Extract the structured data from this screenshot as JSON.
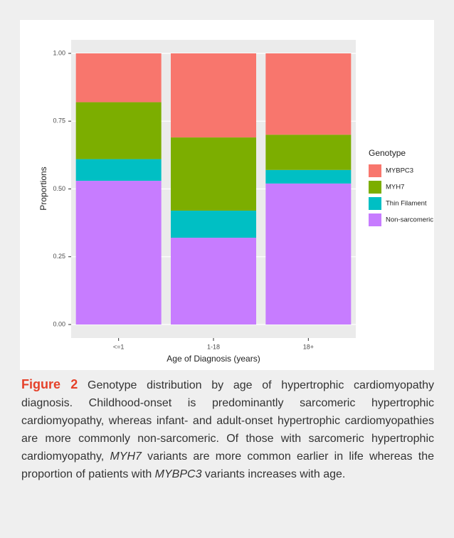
{
  "chart_data": {
    "type": "bar",
    "stacked": true,
    "categories": [
      "<=1",
      "1-18",
      "18+"
    ],
    "series": [
      {
        "name": "MYBPC3",
        "color": "#f8766d",
        "values": [
          0.18,
          0.31,
          0.3
        ]
      },
      {
        "name": "MYH7",
        "color": "#7cae00",
        "values": [
          0.21,
          0.27,
          0.13
        ]
      },
      {
        "name": "Thin Filament",
        "color": "#00bfc4",
        "values": [
          0.08,
          0.1,
          0.05
        ]
      },
      {
        "name": "Non-sarcomeric",
        "color": "#c77cff",
        "values": [
          0.53,
          0.32,
          0.52
        ]
      }
    ],
    "ylim": [
      0,
      1
    ],
    "yticks": [
      {
        "value": 0,
        "label": "0.00"
      },
      {
        "value": 0.25,
        "label": "0.25"
      },
      {
        "value": 0.5,
        "label": "0.50"
      },
      {
        "value": 0.75,
        "label": "0.75"
      },
      {
        "value": 1,
        "label": "1.00"
      }
    ],
    "grid": true,
    "xlabel": "Age of Diagnosis (years)",
    "ylabel": "Proportions",
    "legend_title": "Genotype"
  },
  "caption": {
    "label": "Figure 2",
    "runs": [
      {
        "text": "Genotype distribution by age of hypertrophic cardiomyopathy diagnosis. Childhood-onset is predominantly sarcomeric hypertrophic cardiomyopathy, whereas infant- and adult-onset hypertrophic cardiomyopathies are more commonly non-sarcomeric. Of those with sarcomeric hypertrophic cardiomyopathy, ",
        "italic": false
      },
      {
        "text": "MYH7",
        "italic": true
      },
      {
        "text": " variants are more common earlier in life whereas the proportion of patients with ",
        "italic": false
      },
      {
        "text": "MYBPC3",
        "italic": true
      },
      {
        "text": " variants increases with age.",
        "italic": false
      }
    ]
  }
}
